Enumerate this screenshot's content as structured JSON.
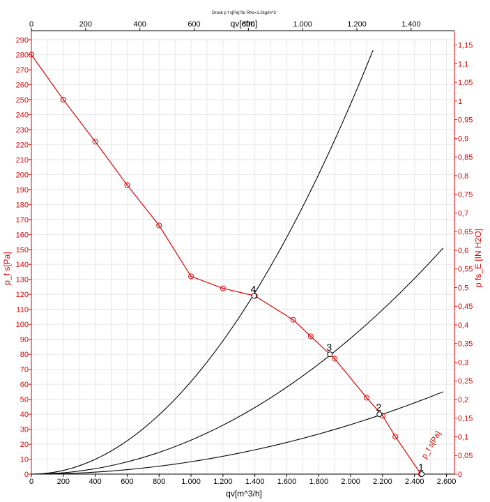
{
  "chart_data": {
    "type": "line",
    "title": "Druck p f s[Pa] für Rho=1.2kg/m^3",
    "x_bottom": {
      "label": "qv[m^3/h]",
      "range": [
        0,
        2650
      ],
      "ticks": [
        0,
        200,
        400,
        600,
        800,
        1000,
        1200,
        1400,
        1600,
        1800,
        2000,
        2200,
        2400,
        2600
      ],
      "tick_labels": [
        "0",
        "200",
        "400",
        "600",
        "800",
        "1.000",
        "1.200",
        "1.400",
        "1.600",
        "1.800",
        "2.000",
        "2.200",
        "2.400",
        "2.600"
      ]
    },
    "x_top": {
      "label": "qv[cfm]",
      "ticks": [
        0,
        200,
        400,
        600,
        800,
        1000,
        1200,
        1400
      ],
      "tick_labels": [
        "0",
        "200",
        "400",
        "600",
        "800",
        "1.000",
        "1.200",
        "1.400"
      ]
    },
    "y_left": {
      "label": "p_f s[Pa]",
      "range": [
        0,
        290
      ],
      "ticks": [
        0,
        10,
        20,
        30,
        40,
        50,
        60,
        70,
        80,
        90,
        100,
        110,
        120,
        130,
        140,
        150,
        160,
        170,
        180,
        190,
        200,
        210,
        220,
        230,
        240,
        250,
        260,
        270,
        280,
        290
      ],
      "tick_labels": [
        "0",
        "10",
        "20",
        "30",
        "40",
        "50",
        "60",
        "70",
        "80",
        "90",
        "100",
        "110",
        "120",
        "130",
        "140",
        "150",
        "160",
        "170",
        "180",
        "190",
        "200",
        "210",
        "220",
        "230",
        "240",
        "250",
        "260",
        "270",
        "280",
        "290"
      ]
    },
    "y_right": {
      "label": "p fs_E [IN H2O]",
      "ticks": [
        0,
        0.05,
        0.1,
        0.15,
        0.2,
        0.25,
        0.3,
        0.35,
        0.4,
        0.45,
        0.5,
        0.55,
        0.6,
        0.65,
        0.7,
        0.75,
        0.8,
        0.85,
        0.9,
        0.95,
        1,
        1.05,
        1.1,
        1.15
      ],
      "tick_labels": [
        "0",
        "0,05",
        "0,1",
        "0,15",
        "0,2",
        "0,25",
        "0,3",
        "0,35",
        "0,4",
        "0,45",
        "0,5",
        "0,55",
        "0,6",
        "0,65",
        "0,7",
        "0,75",
        "0,8",
        "0,85",
        "0,9",
        "0,95",
        "1",
        "1,05",
        "1,1",
        "1,15"
      ]
    },
    "grid": true,
    "fan_curve": {
      "name": "p_f s[Pa]",
      "color": "#e00000",
      "x": [
        0,
        200,
        400,
        600,
        800,
        1000,
        1200,
        1400,
        1640,
        1750,
        1900,
        2100,
        2200,
        2280,
        2440
      ],
      "y": [
        280,
        250,
        222,
        193,
        166,
        132,
        124,
        119,
        103,
        92,
        77,
        51,
        39,
        25,
        0
      ]
    },
    "system_curves": [
      {
        "color": "#000000",
        "x_end": 2140,
        "y_end": 283
      },
      {
        "color": "#000000",
        "x_end": 2580,
        "y_end": 151
      },
      {
        "color": "#000000",
        "x_end": 2580,
        "y_end": 55
      }
    ],
    "operating_points": [
      {
        "label": "1",
        "x": 2445,
        "y": 0
      },
      {
        "label": "2",
        "x": 2180,
        "y": 40
      },
      {
        "label": "3",
        "x": 1870,
        "y": 80
      },
      {
        "label": "4",
        "x": 1395,
        "y": 119
      }
    ]
  }
}
